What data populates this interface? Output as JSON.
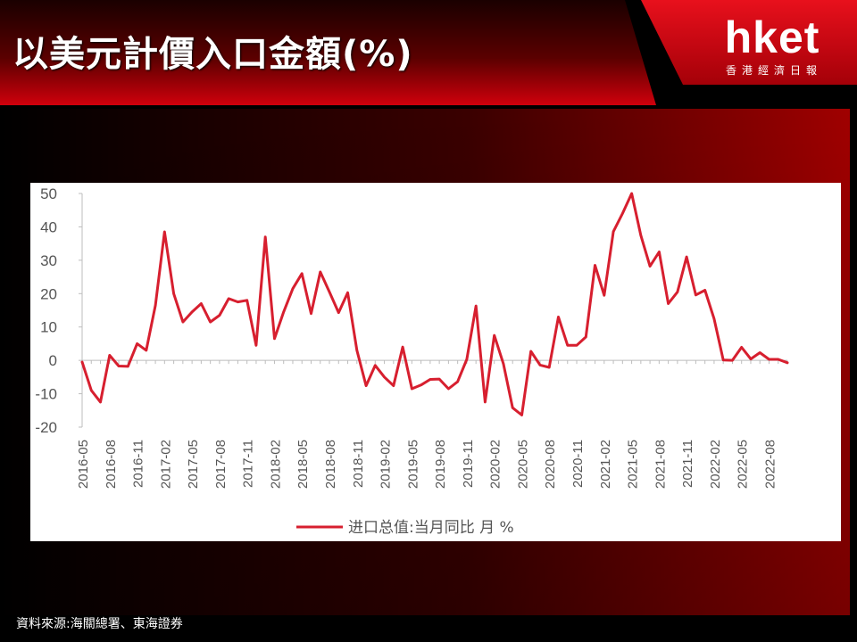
{
  "header": {
    "title": "以美元計價入口金額(%)",
    "logo_text": "hket",
    "logo_subtitle": "香港經濟日報"
  },
  "footer": {
    "source": "資料來源:海關總署、東海證券"
  },
  "colors": {
    "series": "#d71f2f",
    "banner_red": "#c4000e",
    "background_red": "#8a0000"
  },
  "chart_data": {
    "type": "line",
    "title": "",
    "xlabel": "",
    "ylabel": "",
    "ylim": [
      -20,
      50
    ],
    "yticks": [
      -20,
      -10,
      0,
      10,
      20,
      30,
      40,
      50
    ],
    "grid": false,
    "legend_position": "bottom-center",
    "x": [
      "2016-05",
      "2016-06",
      "2016-07",
      "2016-08",
      "2016-09",
      "2016-10",
      "2016-11",
      "2016-12",
      "2017-01",
      "2017-02",
      "2017-03",
      "2017-04",
      "2017-05",
      "2017-06",
      "2017-07",
      "2017-08",
      "2017-09",
      "2017-10",
      "2017-11",
      "2017-12",
      "2018-01",
      "2018-02",
      "2018-03",
      "2018-04",
      "2018-05",
      "2018-06",
      "2018-07",
      "2018-08",
      "2018-09",
      "2018-10",
      "2018-11",
      "2018-12",
      "2019-01",
      "2019-02",
      "2019-03",
      "2019-04",
      "2019-05",
      "2019-06",
      "2019-07",
      "2019-08",
      "2019-09",
      "2019-10",
      "2019-11",
      "2019-12",
      "2020-01",
      "2020-02",
      "2020-03",
      "2020-04",
      "2020-05",
      "2020-06",
      "2020-07",
      "2020-08",
      "2020-09",
      "2020-10",
      "2020-11",
      "2020-12",
      "2021-01",
      "2021-02",
      "2021-03",
      "2021-04",
      "2021-05",
      "2021-06",
      "2021-07",
      "2021-08",
      "2021-09",
      "2021-10",
      "2021-11",
      "2021-12",
      "2022-01",
      "2022-02",
      "2022-03",
      "2022-04",
      "2022-05",
      "2022-06",
      "2022-07",
      "2022-08",
      "2022-09",
      "2022-10"
    ],
    "xtick_labels": [
      "2016-05",
      "2016-08",
      "2016-11",
      "2017-02",
      "2017-05",
      "2017-08",
      "2017-11",
      "2018-02",
      "2018-05",
      "2018-08",
      "2018-11",
      "2019-02",
      "2019-05",
      "2019-08",
      "2019-11",
      "2020-02",
      "2020-05",
      "2020-08",
      "2020-11",
      "2021-02",
      "2021-05",
      "2021-08",
      "2021-11",
      "2022-02",
      "2022-05",
      "2022-08"
    ],
    "series": [
      {
        "name": "进口总值:当月同比 月 %",
        "values": [
          -0.5,
          -9,
          -12.5,
          1.5,
          -1.7,
          -1.8,
          5,
          3,
          16.5,
          38.5,
          20,
          11.5,
          14.5,
          17,
          11.5,
          13.5,
          18.5,
          17.5,
          18,
          4.5,
          37,
          6.5,
          14.5,
          21.5,
          26,
          14,
          26.5,
          20.5,
          14.3,
          20.3,
          3,
          -7.6,
          -1.5,
          -5,
          -7.6,
          4,
          -8.5,
          -7.4,
          -5.7,
          -5.6,
          -8.5,
          -6.4,
          0.3,
          16.3,
          -12.5,
          7.5,
          -1,
          -14.2,
          -16.4,
          2.7,
          -1.4,
          -2.1,
          13,
          4.5,
          4.5,
          7,
          28.5,
          19.5,
          38.6,
          44,
          50,
          37.5,
          28.2,
          32.5,
          17,
          20.5,
          31,
          19.6,
          21,
          12.5,
          0.1,
          0,
          3.9,
          0.4,
          2.3,
          0.3,
          0.3,
          -0.7
        ]
      }
    ]
  }
}
